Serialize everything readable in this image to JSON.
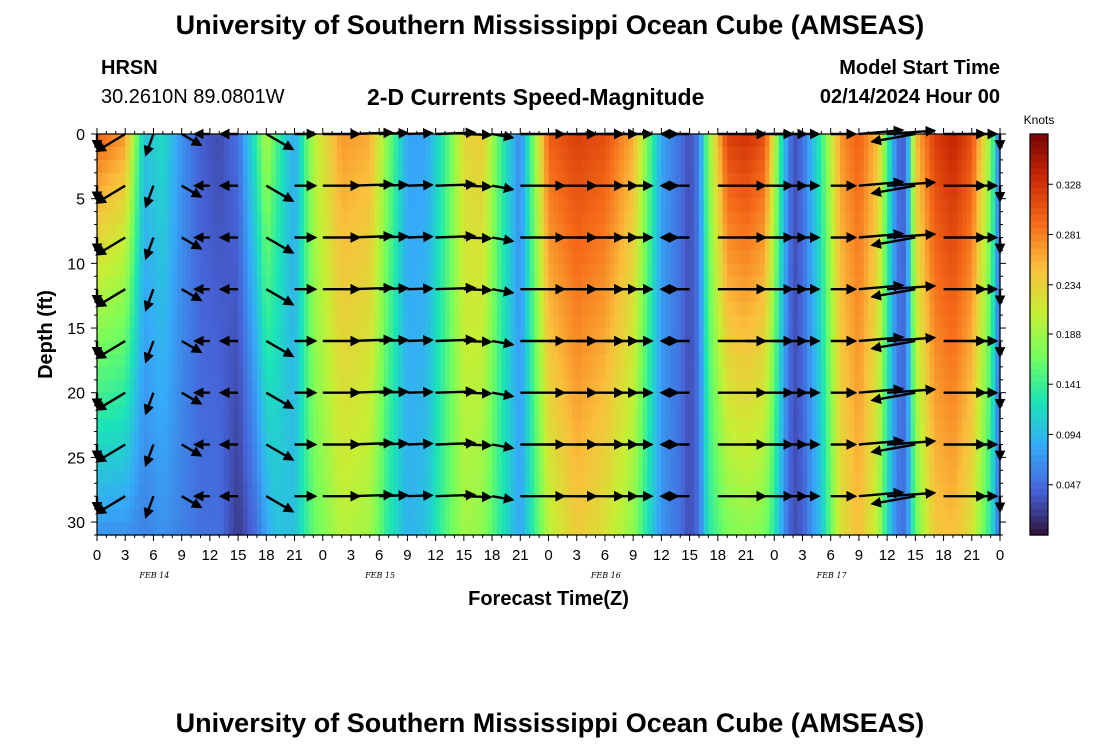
{
  "page": {
    "title": "University of Southern Mississippi Ocean Cube (AMSEAS)",
    "station_name": "HRSN",
    "coordinates": "30.2610N  89.0801W",
    "subtitle": "2-D Currents Speed-Magnitude",
    "model_start_label": "Model Start Time",
    "model_start_value": "02/14/2024 Hour 00",
    "bottom_title": "University of Southern Mississippi Ocean Cube (AMSEAS)"
  },
  "chart_data": {
    "type": "heatmap",
    "title": "2-D Currents Speed-Magnitude",
    "xlabel": "Forecast Time(Z)",
    "ylabel": "Depth (ft)",
    "x_hours_range": [
      0,
      96
    ],
    "x_tick_labels": [
      "0",
      "3",
      "6",
      "9",
      "12",
      "15",
      "18",
      "21",
      "0",
      "3",
      "6",
      "9",
      "12",
      "15",
      "18",
      "21",
      "0",
      "3",
      "6",
      "9",
      "12",
      "15",
      "18",
      "21",
      "0",
      "3",
      "6",
      "9",
      "12",
      "15",
      "18",
      "21",
      "0"
    ],
    "day_labels": [
      "FEB 14",
      "FEB 15",
      "FEB 16",
      "FEB 17"
    ],
    "ylim": [
      0,
      31
    ],
    "y_ticks": [
      0,
      5,
      10,
      15,
      20,
      25,
      30
    ],
    "colorbar": {
      "label": "Knots",
      "range": [
        0.0,
        0.375
      ],
      "ticks": [
        "0.328",
        "0.281",
        "0.234",
        "0.188",
        "0.141",
        "0.094",
        "0.047"
      ],
      "tick_values": [
        0.328,
        0.281,
        0.234,
        0.188,
        0.141,
        0.094,
        0.047
      ],
      "colors": [
        "#30123b",
        "#4662d7",
        "#36aaf9",
        "#1ae4b6",
        "#72fe5e",
        "#c7ef34",
        "#fabf3c",
        "#f66b19",
        "#cb2a04",
        "#7a0403"
      ]
    },
    "speed_profile": {
      "hours": [
        0,
        3,
        5,
        7,
        9,
        11,
        13,
        15,
        17,
        18,
        19,
        21,
        23,
        26,
        29,
        31,
        33,
        35,
        37,
        39,
        41,
        43,
        45,
        48,
        51,
        54,
        57,
        60,
        62,
        63,
        64,
        65,
        67,
        69,
        71,
        72,
        73,
        74,
        75,
        77,
        79,
        81,
        83,
        84,
        85,
        86,
        87,
        89,
        91,
        93,
        95,
        96
      ],
      "surface_knots": [
        0.3,
        0.27,
        0.1,
        0.12,
        0.07,
        0.04,
        0.03,
        0.05,
        0.14,
        0.2,
        0.15,
        0.08,
        0.2,
        0.27,
        0.26,
        0.17,
        0.08,
        0.08,
        0.14,
        0.23,
        0.24,
        0.14,
        0.06,
        0.3,
        0.32,
        0.31,
        0.26,
        0.08,
        0.05,
        0.03,
        0.06,
        0.18,
        0.32,
        0.33,
        0.31,
        0.21,
        0.1,
        0.03,
        0.05,
        0.14,
        0.27,
        0.3,
        0.25,
        0.15,
        0.05,
        0.04,
        0.25,
        0.32,
        0.34,
        0.31,
        0.18,
        0.04
      ],
      "bottom_knots": [
        0.07,
        0.07,
        0.06,
        0.07,
        0.06,
        0.05,
        0.05,
        0.02,
        0.05,
        0.08,
        0.1,
        0.1,
        0.16,
        0.2,
        0.19,
        0.13,
        0.09,
        0.1,
        0.15,
        0.19,
        0.18,
        0.13,
        0.08,
        0.2,
        0.24,
        0.22,
        0.18,
        0.07,
        0.05,
        0.03,
        0.05,
        0.13,
        0.17,
        0.18,
        0.17,
        0.13,
        0.07,
        0.03,
        0.04,
        0.1,
        0.22,
        0.25,
        0.2,
        0.12,
        0.06,
        0.05,
        0.16,
        0.24,
        0.25,
        0.22,
        0.13,
        0.04
      ]
    },
    "vectors": {
      "hours": [
        0,
        3,
        6,
        9,
        12,
        15,
        18,
        21,
        24,
        27,
        30,
        33,
        36,
        39,
        42,
        45,
        48,
        51,
        54,
        57,
        60,
        63,
        66,
        69,
        72,
        75,
        78,
        81,
        84,
        87,
        90,
        93,
        96
      ],
      "depths_ft": [
        0,
        4,
        8,
        12,
        16,
        20,
        24,
        28
      ],
      "direction_deg_by_time": [
        250,
        240,
        200,
        120,
        270,
        270,
        120,
        90,
        90,
        88,
        88,
        88,
        88,
        92,
        100,
        90,
        90,
        90,
        90,
        90,
        90,
        270,
        90,
        90,
        90,
        90,
        90,
        85,
        86,
        260,
        90,
        90,
        180
      ],
      "speed_knots_by_time": [
        0.27,
        0.2,
        0.1,
        0.1,
        0.04,
        0.06,
        0.17,
        0.09,
        0.22,
        0.26,
        0.15,
        0.12,
        0.24,
        0.14,
        0.09,
        0.28,
        0.31,
        0.3,
        0.18,
        0.07,
        0.05,
        0.15,
        0.31,
        0.3,
        0.18,
        0.05,
        0.12,
        0.28,
        0.31,
        0.28,
        0.26,
        0.12,
        0.04
      ]
    }
  }
}
